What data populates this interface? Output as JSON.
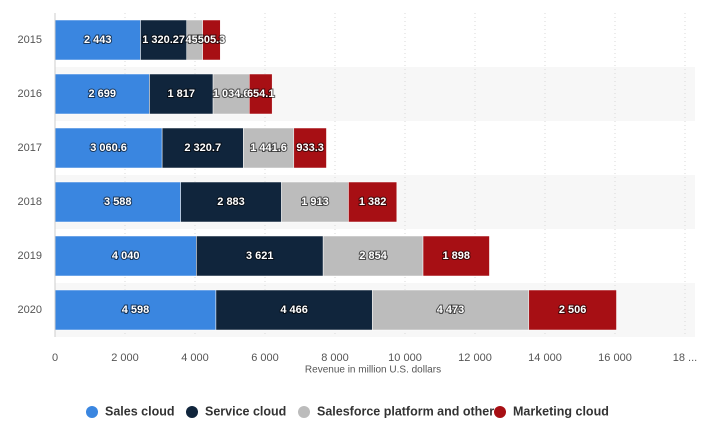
{
  "chart_data": {
    "type": "stacked-bar-horizontal",
    "categories": [
      "2015",
      "2016",
      "2017",
      "2018",
      "2019",
      "2020"
    ],
    "series": [
      {
        "name": "Sales cloud",
        "color": "#3a86e0",
        "values": [
          2443,
          2699,
          3060.6,
          3588,
          4040,
          4598
        ],
        "value_labels": [
          "2 443",
          "2 699",
          "3 060.6",
          "3 588",
          "4 040",
          "4 598"
        ]
      },
      {
        "name": "Service cloud",
        "color": "#10253c",
        "values": [
          1320.27,
          1817,
          2320.7,
          2883,
          3621,
          4466
        ],
        "value_labels": [
          "1 320.27",
          "1 817",
          "2 320.7",
          "2 883",
          "3 621",
          "4 466"
        ]
      },
      {
        "name": "Salesforce platform and other",
        "color": "#bcbcbc",
        "values": [
          455,
          1034.6,
          1441.6,
          1913,
          2854,
          4473
        ],
        "value_labels": [
          "455",
          "1 034.6",
          "1 441.6",
          "1 913",
          "2 854",
          "4 473"
        ]
      },
      {
        "name": "Marketing cloud",
        "color": "#a70f14",
        "values": [
          505.3,
          654.1,
          933.3,
          1382,
          1898,
          2506
        ],
        "value_labels": [
          "505.3",
          "654.1",
          "933.3",
          "1 382",
          "1 898",
          "2 506"
        ]
      }
    ],
    "xlim": [
      0,
      18000
    ],
    "xticks": [
      0,
      {
        "value": 2000,
        "label": "2 000"
      },
      {
        "value": 4000,
        "label": "4 000"
      },
      {
        "value": 6000,
        "label": "6 000"
      },
      {
        "value": 8000,
        "label": "8 000"
      },
      {
        "value": 10000,
        "label": "10 000"
      },
      {
        "value": 12000,
        "label": "12 000"
      },
      {
        "value": 14000,
        "label": "14 000"
      },
      {
        "value": 16000,
        "label": "16 000"
      },
      {
        "value": 18000,
        "label": "18 ..."
      }
    ],
    "xlabel": "Revenue in million U.S. dollars",
    "grid": true,
    "legend": "bottom"
  }
}
